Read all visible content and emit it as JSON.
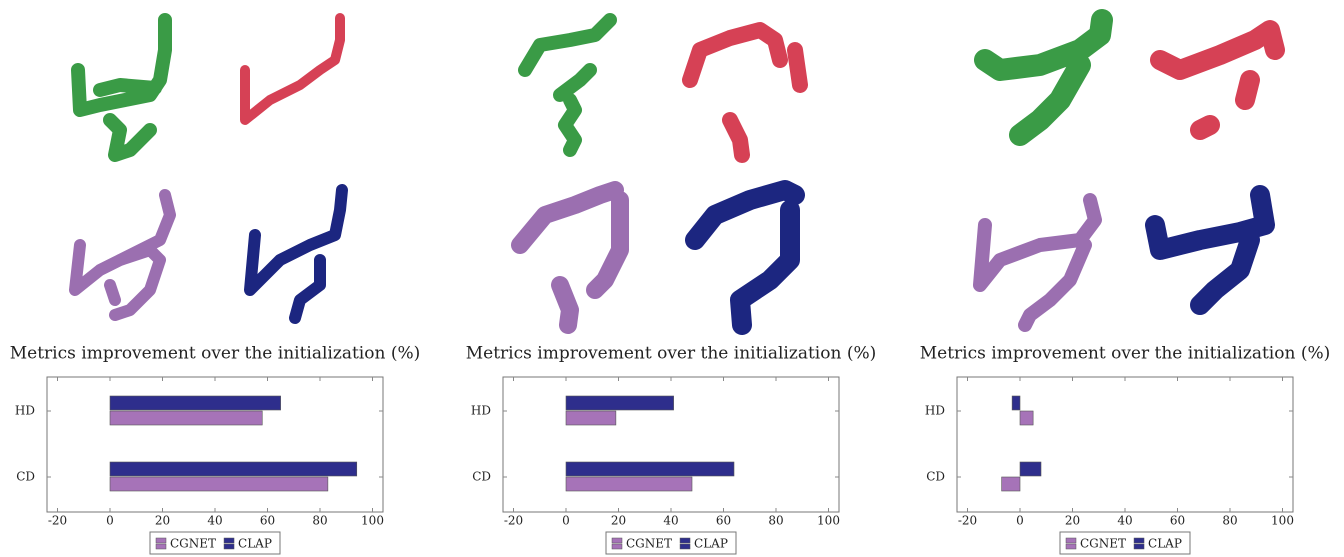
{
  "chart_data": [
    {
      "type": "bar",
      "orientation": "horizontal",
      "title": "Metrics improvement over the initialization (%)",
      "categories": [
        "HD",
        "CD"
      ],
      "series": [
        {
          "name": "CGNET",
          "color": "#a673b8",
          "values": [
            58,
            83
          ]
        },
        {
          "name": "CLAP",
          "color": "#2e2e8c",
          "values": [
            65,
            94
          ]
        }
      ],
      "xlim": [
        -24,
        104
      ],
      "xticks": [
        -20,
        0,
        20,
        40,
        60,
        80,
        100
      ]
    },
    {
      "type": "bar",
      "orientation": "horizontal",
      "title": "Metrics improvement over the initialization (%)",
      "categories": [
        "HD",
        "CD"
      ],
      "series": [
        {
          "name": "CGNET",
          "color": "#a673b8",
          "values": [
            19,
            48
          ]
        },
        {
          "name": "CLAP",
          "color": "#2e2e8c",
          "values": [
            41,
            64
          ]
        }
      ],
      "xlim": [
        -24,
        104
      ],
      "xticks": [
        -20,
        0,
        20,
        40,
        60,
        80,
        100
      ]
    },
    {
      "type": "bar",
      "orientation": "horizontal",
      "title": "Metrics improvement over the initialization (%)",
      "categories": [
        "HD",
        "CD"
      ],
      "series": [
        {
          "name": "CGNET",
          "color": "#a673b8",
          "values": [
            5,
            -7
          ]
        },
        {
          "name": "CLAP",
          "color": "#2e2e8c",
          "values": [
            -3,
            8
          ]
        }
      ],
      "xlim": [
        -24,
        104
      ],
      "xticks": [
        -20,
        0,
        20,
        40,
        60,
        80,
        100
      ]
    }
  ]
}
